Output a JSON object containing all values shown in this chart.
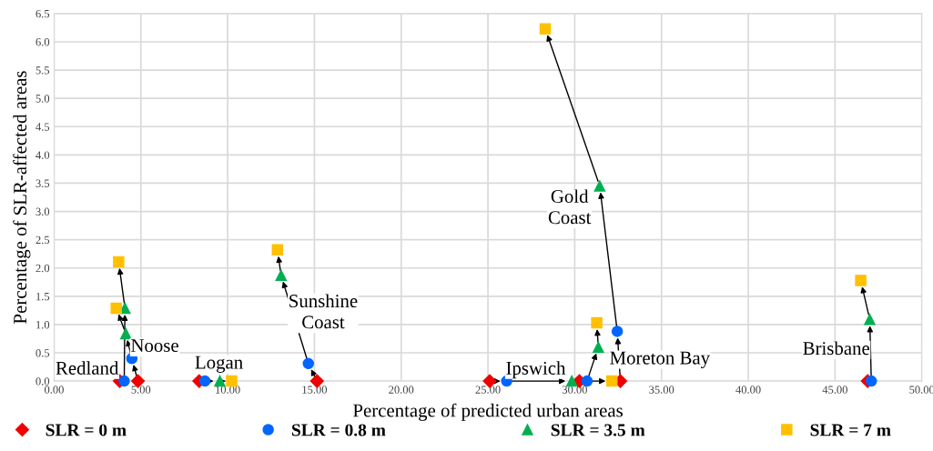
{
  "chart_data": {
    "type": "scatter",
    "xlabel": "Percentage of predicted urban areas",
    "ylabel": "Percentage of SLR-affected areas",
    "series": [
      {
        "name": "SLR = 0 m",
        "color": "#ee0000",
        "marker": "diamond",
        "x": [
          3.78,
          4.83,
          8.36,
          15.15,
          25.1,
          32.63,
          30.27,
          46.88
        ],
        "values": [
          0,
          0,
          0,
          0,
          0,
          0,
          0,
          0
        ]
      },
      {
        "name": "SLR = 0.8 m",
        "color": "#0066ff",
        "marker": "circle",
        "x": [
          4.04,
          4.48,
          8.69,
          14.65,
          26.08,
          32.45,
          30.71,
          47.09
        ],
        "values": [
          0,
          0.4,
          0,
          0.31,
          0,
          0.88,
          0,
          0
        ]
      },
      {
        "name": "SLR = 3.5 m",
        "color": "#00b050",
        "marker": "triangle",
        "x": [
          4.08,
          4.13,
          9.55,
          13.08,
          29.83,
          31.44,
          31.36,
          47.0
        ],
        "values": [
          1.29,
          0.84,
          0,
          1.87,
          0,
          3.45,
          0.6,
          1.09
        ]
      },
      {
        "name": "SLR = 7 m",
        "color": "#ffc000",
        "marker": "square",
        "x": [
          3.72,
          3.58,
          10.23,
          12.87,
          32.14,
          28.3,
          31.27,
          46.48
        ],
        "values": [
          2.11,
          1.29,
          0,
          2.32,
          0,
          6.23,
          1.03,
          1.78
        ]
      }
    ],
    "annotations": [
      {
        "text": "Redland",
        "x": 3.78,
        "y": 0
      },
      {
        "text": "Noose",
        "x": 4.83,
        "y": 0
      },
      {
        "text": "Logan",
        "x": 8.36,
        "y": 0
      },
      {
        "text": "Sunshine\nCoast",
        "x": 15.15,
        "y": 0
      },
      {
        "text": "Ipswich",
        "x": 25.1,
        "y": 0
      },
      {
        "text": "Gold\nCoast",
        "x": 31.44,
        "y": 3.45
      },
      {
        "text": "Moreton Bay",
        "x": 30.27,
        "y": 0
      },
      {
        "text": "Brisbane",
        "x": 46.88,
        "y": 0
      }
    ],
    "xlim": [
      0,
      50
    ],
    "ylim": [
      0,
      6.5
    ],
    "xticks": [
      {
        "value": 0,
        "label": "0.00"
      },
      {
        "value": 5,
        "label": "5.00"
      },
      {
        "value": 10,
        "label": "10.00"
      },
      {
        "value": 15,
        "label": "15.00"
      },
      {
        "value": 20,
        "label": "20.00"
      },
      {
        "value": 25,
        "label": "25.00"
      },
      {
        "value": 30,
        "label": "30.00"
      },
      {
        "value": 35,
        "label": "35.00"
      },
      {
        "value": 40,
        "label": "40.00"
      },
      {
        "value": 45,
        "label": "45.00"
      },
      {
        "value": 50,
        "label": "50.00"
      }
    ],
    "yticks": [
      {
        "value": 0,
        "label": "0.0"
      },
      {
        "value": 0.5,
        "label": "0.5"
      },
      {
        "value": 1,
        "label": "1.0"
      },
      {
        "value": 1.5,
        "label": "1.5"
      },
      {
        "value": 2,
        "label": "2.0"
      },
      {
        "value": 2.5,
        "label": "2.5"
      },
      {
        "value": 3,
        "label": "3.0"
      },
      {
        "value": 3.5,
        "label": "3.5"
      },
      {
        "value": 4,
        "label": "4.0"
      },
      {
        "value": 4.5,
        "label": "4.5"
      },
      {
        "value": 5,
        "label": "5.0"
      },
      {
        "value": 5.5,
        "label": "5.5"
      },
      {
        "value": 6,
        "label": "6.0"
      },
      {
        "value": 6.5,
        "label": "6.5"
      }
    ],
    "grid": true,
    "legend": "bottom"
  }
}
